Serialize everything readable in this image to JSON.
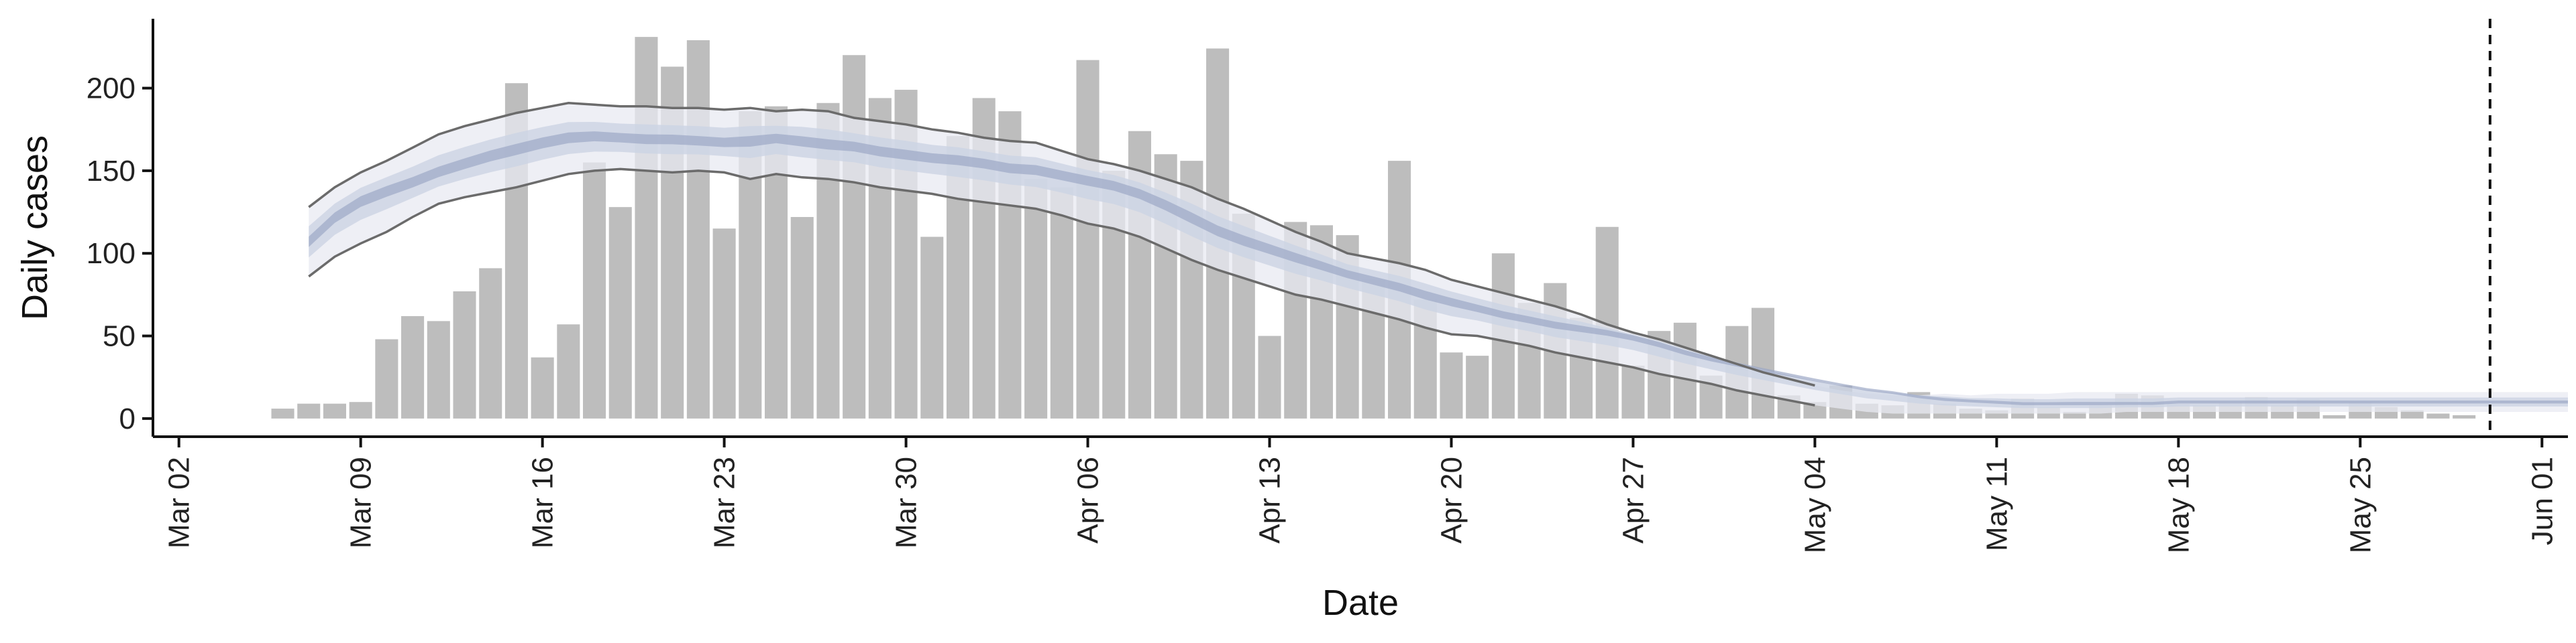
{
  "chart_data": {
    "type": "bar",
    "xlabel": "Date",
    "ylabel": "Daily cases",
    "x_tick_labels": [
      "Mar 02",
      "Mar 09",
      "Mar 16",
      "Mar 23",
      "Mar 30",
      "Apr 06",
      "Apr 13",
      "Apr 20",
      "Apr 27",
      "May 04",
      "May 11",
      "May 18",
      "May 25",
      "Jun 01"
    ],
    "y_tick_labels": [
      "0",
      "50",
      "100",
      "150",
      "200"
    ],
    "y_ticks": [
      0,
      50,
      100,
      150,
      200
    ],
    "ylim": [
      -11,
      242
    ],
    "xlim": [
      "2020-03-01",
      "2020-06-02"
    ],
    "bar_color": "#bdbdbd",
    "band_outer_color": "#e8eaf2",
    "band_mid_color": "#ccd3e4",
    "band_inner_color": "#9ca8c6",
    "interval_line_color": "#6b6b6b",
    "vline_date": "2020-05-30",
    "bars": {
      "start_date": "2020-03-06",
      "values": [
        6,
        9,
        9,
        10,
        48,
        62,
        59,
        77,
        91,
        203,
        37,
        57,
        155,
        128,
        231,
        213,
        229,
        115,
        186,
        189,
        122,
        191,
        220,
        194,
        199,
        110,
        171,
        194,
        186,
        145,
        140,
        217,
        150,
        174,
        160,
        156,
        224,
        124,
        50,
        119,
        117,
        111,
        84,
        156,
        72,
        40,
        38,
        100,
        70,
        82,
        61,
        116,
        32,
        53,
        58,
        26,
        56,
        67,
        14,
        10,
        20,
        9,
        8,
        16,
        9,
        6,
        5,
        12,
        7,
        4,
        8,
        15,
        14,
        9,
        8,
        10,
        13,
        8,
        12,
        2,
        10,
        7,
        5,
        3,
        2
      ]
    },
    "estimate": {
      "start_date": "2020-03-07",
      "median": [
        107,
        122,
        132,
        138,
        143,
        149,
        154,
        159,
        163,
        167,
        170,
        171,
        170,
        169,
        169,
        168,
        167,
        168,
        170,
        168,
        166,
        165,
        162,
        160,
        158,
        157,
        155,
        152,
        151,
        148,
        145,
        142,
        137,
        130,
        122,
        114,
        108,
        103,
        98,
        93,
        88,
        84,
        80,
        75,
        71,
        67,
        63,
        60,
        57,
        55,
        53,
        50,
        46,
        41,
        37,
        34,
        31,
        28,
        25,
        22,
        19,
        17,
        14,
        12,
        11,
        10,
        9,
        9,
        9,
        9,
        9,
        9,
        10,
        10,
        10,
        10,
        10,
        10,
        10,
        10,
        10,
        10,
        10,
        10,
        10,
        10,
        10,
        10
      ],
      "lower": [
        86,
        98,
        106,
        113,
        122,
        130,
        134,
        137,
        140,
        144,
        148,
        150,
        151,
        150,
        149,
        150,
        149,
        145,
        148,
        146,
        145,
        143,
        140,
        138,
        136,
        133,
        131,
        129,
        127,
        123,
        118,
        115,
        110,
        103,
        96,
        90,
        85,
        80,
        75,
        72,
        68,
        64,
        60,
        55,
        51,
        50,
        47,
        44,
        40,
        37,
        34,
        31,
        27,
        24,
        21,
        17,
        14,
        11,
        8,
        6,
        4,
        3,
        3,
        3,
        3,
        3,
        3,
        3,
        3,
        3,
        4,
        4,
        4,
        4,
        4,
        4,
        4,
        4,
        4,
        4,
        4,
        4,
        4,
        4,
        4,
        4,
        4,
        4
      ],
      "upper": [
        128,
        140,
        149,
        156,
        164,
        172,
        177,
        181,
        185,
        188,
        191,
        190,
        189,
        189,
        188,
        188,
        187,
        188,
        186,
        187,
        186,
        182,
        180,
        178,
        175,
        173,
        170,
        168,
        167,
        162,
        157,
        154,
        150,
        145,
        140,
        133,
        127,
        120,
        113,
        107,
        100,
        97,
        94,
        90,
        84,
        80,
        76,
        72,
        68,
        63,
        57,
        52,
        48,
        43,
        38,
        33,
        28,
        24,
        20,
        17,
        15,
        14,
        14,
        15,
        14,
        15,
        15,
        15,
        16,
        16,
        16,
        16,
        16,
        16,
        16,
        16,
        16,
        16,
        16,
        16,
        16,
        16,
        16,
        16,
        16,
        16,
        16,
        16
      ]
    }
  }
}
